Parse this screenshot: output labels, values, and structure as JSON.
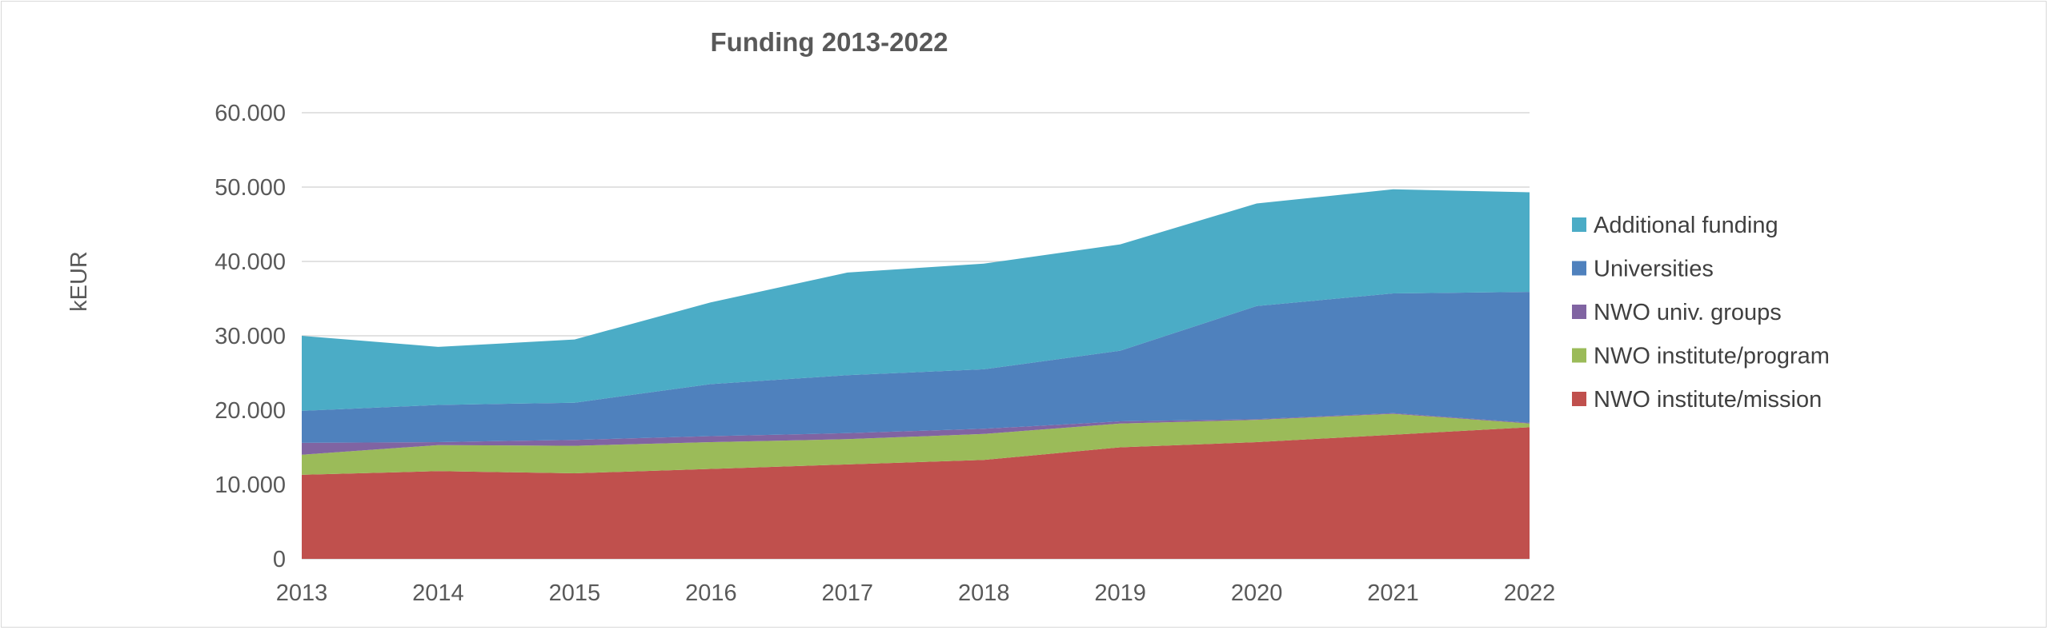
{
  "chart_data": {
    "type": "area",
    "stacked": true,
    "title": "Funding 2013-2022",
    "xlabel": "",
    "ylabel": "kEUR",
    "x": [
      "2013",
      "2014",
      "2015",
      "2016",
      "2017",
      "2018",
      "2019",
      "2020",
      "2021",
      "2022"
    ],
    "ylim": [
      0,
      60000
    ],
    "yticks": [
      0,
      10000,
      20000,
      30000,
      40000,
      50000,
      60000
    ],
    "ytick_labels": [
      "0",
      "10.000",
      "20.000",
      "30.000",
      "40.000",
      "50.000",
      "60.000"
    ],
    "grid": true,
    "legend_position": "right",
    "series": [
      {
        "name": "NWO institute/mission",
        "color": "#C0504D",
        "values": [
          11300,
          11800,
          11500,
          12100,
          12700,
          13300,
          15000,
          15700,
          16700,
          17700
        ]
      },
      {
        "name": "NWO institute/program",
        "color": "#9BBB59",
        "values": [
          2700,
          3500,
          3700,
          3600,
          3400,
          3500,
          3200,
          3000,
          2800,
          500
        ]
      },
      {
        "name": "NWO univ. groups",
        "color": "#8064A2",
        "values": [
          1600,
          400,
          800,
          800,
          800,
          700,
          300,
          100,
          100,
          100
        ]
      },
      {
        "name": "Universities",
        "color": "#4F81BD",
        "values": [
          4300,
          5000,
          5000,
          7000,
          7800,
          8000,
          9500,
          15200,
          16100,
          17600
        ]
      },
      {
        "name": "Additional funding",
        "color": "#4BACC6",
        "values": [
          10100,
          7800,
          8500,
          11000,
          13800,
          14200,
          14300,
          13800,
          14000,
          13400
        ]
      }
    ]
  }
}
